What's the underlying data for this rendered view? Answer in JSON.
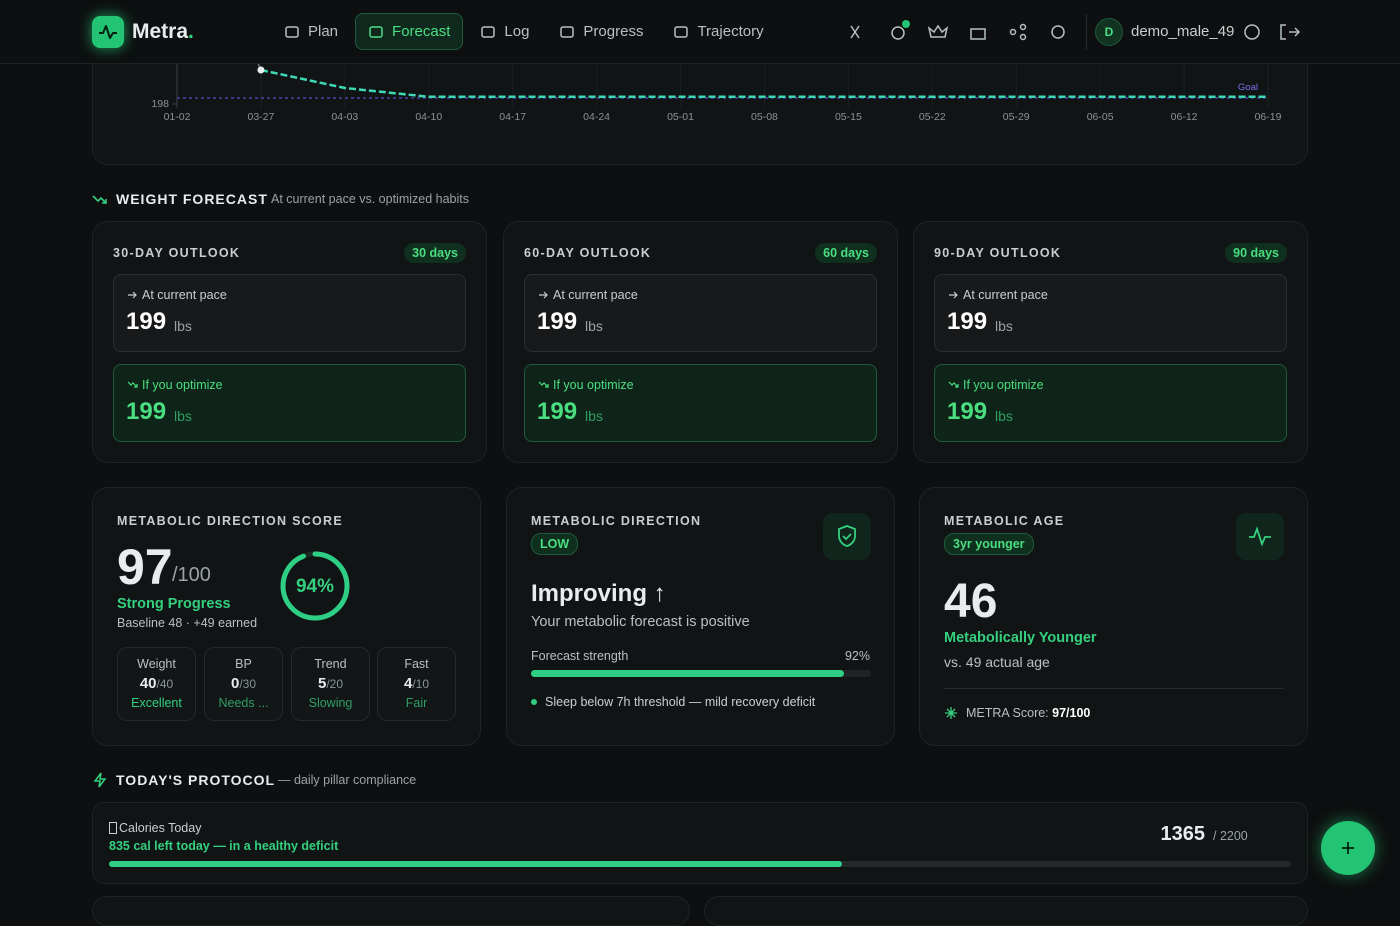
{
  "nav": {
    "brand": "Metra",
    "brand_dot": ".",
    "items": [
      "Plan",
      "Forecast",
      "Log",
      "Progress",
      "Trajectory"
    ],
    "user_initial": "D",
    "username": "demo_male_49"
  },
  "chart_data": {
    "type": "line",
    "categories": [
      "01-02",
      "03-27",
      "04-03",
      "04-10",
      "04-17",
      "04-24",
      "05-01",
      "05-08",
      "05-15",
      "05-22",
      "05-29",
      "06-05",
      "06-12",
      "06-19"
    ],
    "values": [
      null,
      198.85,
      198.4,
      198.18,
      198.18,
      198.18,
      198.18,
      198.18,
      198.18,
      198.18,
      198.18,
      198.18,
      198.18,
      198.18
    ],
    "color": "#3dd9b6",
    "goal": 198.15,
    "goal_label": "Goal",
    "goal_color": "#5a4bc4",
    "ylim": [
      197.9,
      199
    ],
    "yticks": [
      198
    ],
    "grid": true
  },
  "forecast": {
    "title": "WEIGHT FORECAST",
    "subtitle": "At current pace vs. optimized habits",
    "cards": [
      {
        "title": "30-DAY OUTLOOK",
        "badge": "30 days",
        "current": {
          "label": "At current pace",
          "value": 199,
          "unit": "lbs"
        },
        "optimized": {
          "label": "If you optimize",
          "value": 199,
          "unit": "lbs"
        }
      },
      {
        "title": "60-DAY OUTLOOK",
        "badge": "60 days",
        "current": {
          "label": "At current pace",
          "value": 199,
          "unit": "lbs"
        },
        "optimized": {
          "label": "If you optimize",
          "value": 199,
          "unit": "lbs"
        }
      },
      {
        "title": "90-DAY OUTLOOK",
        "badge": "90 days",
        "current": {
          "label": "At current pace",
          "value": 199,
          "unit": "lbs"
        },
        "optimized": {
          "label": "If you optimize",
          "value": 199,
          "unit": "lbs"
        }
      }
    ]
  },
  "score": {
    "title": "METABOLIC DIRECTION SCORE",
    "value": 97,
    "max_label": "/100",
    "status": "Strong Progress",
    "baseline": "Baseline 48 · +49 earned",
    "ring_value": 94,
    "ring_label": "94%",
    "pillars": [
      {
        "name": "Weight",
        "score": 40,
        "max_label": "/40",
        "status": "Excellent"
      },
      {
        "name": "BP",
        "score": 0,
        "max_label": "/30",
        "status": "Needs ..."
      },
      {
        "name": "Trend",
        "score": 5,
        "max_label": "/20",
        "status": "Slowing"
      },
      {
        "name": "Fast",
        "score": 4,
        "max_label": "/10",
        "status": "Fair"
      }
    ]
  },
  "direction": {
    "title": "METABOLIC DIRECTION",
    "badge": "LOW",
    "heading": "Improving ↑",
    "description": "Your metabolic forecast is positive",
    "strength_label": "Forecast strength",
    "strength": 92,
    "strength_value_label": "92%",
    "note": "Sleep below 7h threshold — mild recovery deficit"
  },
  "age": {
    "title": "METABOLIC AGE",
    "badge": "3yr younger",
    "value": 46,
    "status": "Metabolically Younger",
    "comparison": "vs. 49 actual age",
    "footer_label": "METRA Score:",
    "footer_value": "97/100"
  },
  "protocol": {
    "title": "TODAY'S PROTOCOL",
    "subtitle": "— daily pillar compliance",
    "calories": {
      "title": "Calories Today",
      "message": "835 cal left today — in a healthy deficit",
      "consumed": 1365,
      "target": 2200,
      "target_label": "/ 2200"
    }
  }
}
